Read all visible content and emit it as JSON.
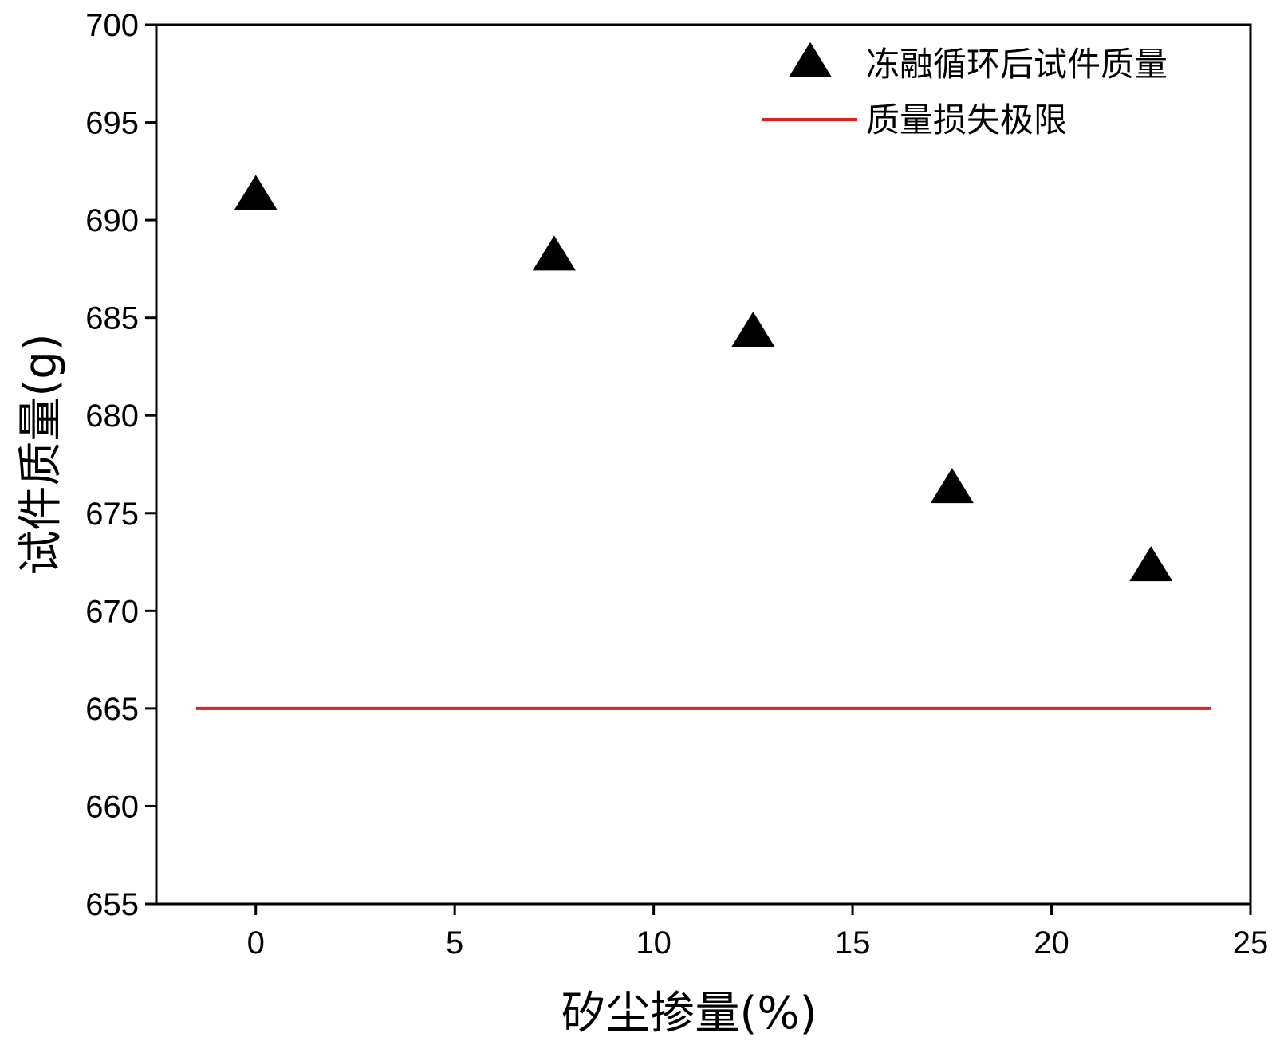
{
  "chart_data": {
    "type": "scatter",
    "title": "",
    "xlabel": "矽尘掺量(%)",
    "ylabel": "试件质量(g)",
    "xlim": [
      -2.5,
      25
    ],
    "ylim": [
      655,
      700
    ],
    "x_ticks": [
      0,
      5,
      10,
      15,
      20,
      25
    ],
    "y_ticks": [
      655,
      660,
      665,
      670,
      675,
      680,
      685,
      690,
      695,
      700
    ],
    "grid": false,
    "legend_position": "top-right",
    "series": [
      {
        "name": "冻融循环后试件质量",
        "kind": "scatter",
        "marker": "triangle",
        "color": "#000000",
        "points": [
          {
            "x": 0,
            "y": 691.2
          },
          {
            "x": 7.5,
            "y": 688.1
          },
          {
            "x": 12.5,
            "y": 684.2
          },
          {
            "x": 17.5,
            "y": 676.2
          },
          {
            "x": 22.5,
            "y": 672.2
          }
        ]
      },
      {
        "name": "质量损失极限",
        "kind": "line",
        "color": "#e02020",
        "points": [
          {
            "x": -1.5,
            "y": 665
          },
          {
            "x": 24,
            "y": 665
          }
        ]
      }
    ]
  }
}
